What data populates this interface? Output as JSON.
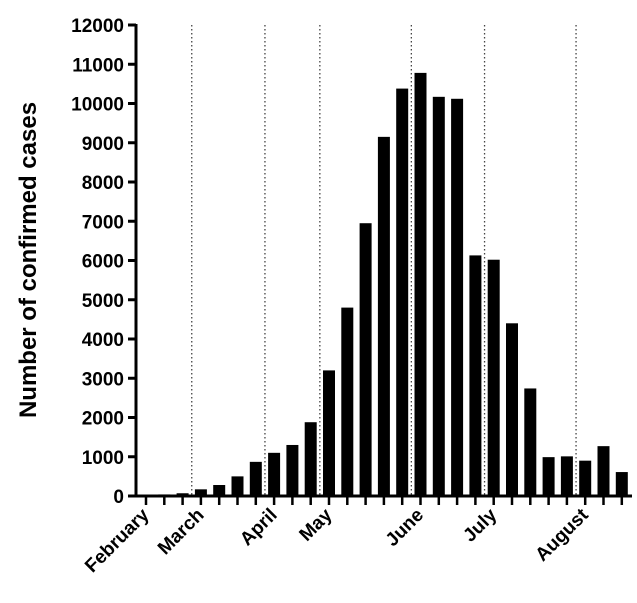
{
  "chart_data": {
    "type": "bar",
    "title": "",
    "xlabel": "",
    "ylabel": "Number of confirmed cases",
    "ylim": [
      0,
      12000
    ],
    "yticks": [
      0,
      1000,
      2000,
      3000,
      4000,
      5000,
      6000,
      7000,
      8000,
      9000,
      10000,
      11000,
      12000
    ],
    "values": [
      30,
      40,
      70,
      170,
      280,
      500,
      870,
      1100,
      1300,
      1880,
      3200,
      4800,
      6950,
      9150,
      10380,
      10780,
      10170,
      10120,
      6130,
      6020,
      4400,
      2740,
      990,
      1010,
      900,
      1270,
      610
    ],
    "month_labels": [
      "February",
      "March",
      "April",
      "May",
      "June",
      "July",
      "August"
    ],
    "month_label_bar_positions": [
      0,
      3,
      7,
      10,
      15,
      19,
      24
    ],
    "month_divider_bar_positions": [
      2.5,
      6.5,
      9.5,
      14.5,
      18.5,
      23.5
    ],
    "bar_color": "#000000",
    "grid": false
  }
}
